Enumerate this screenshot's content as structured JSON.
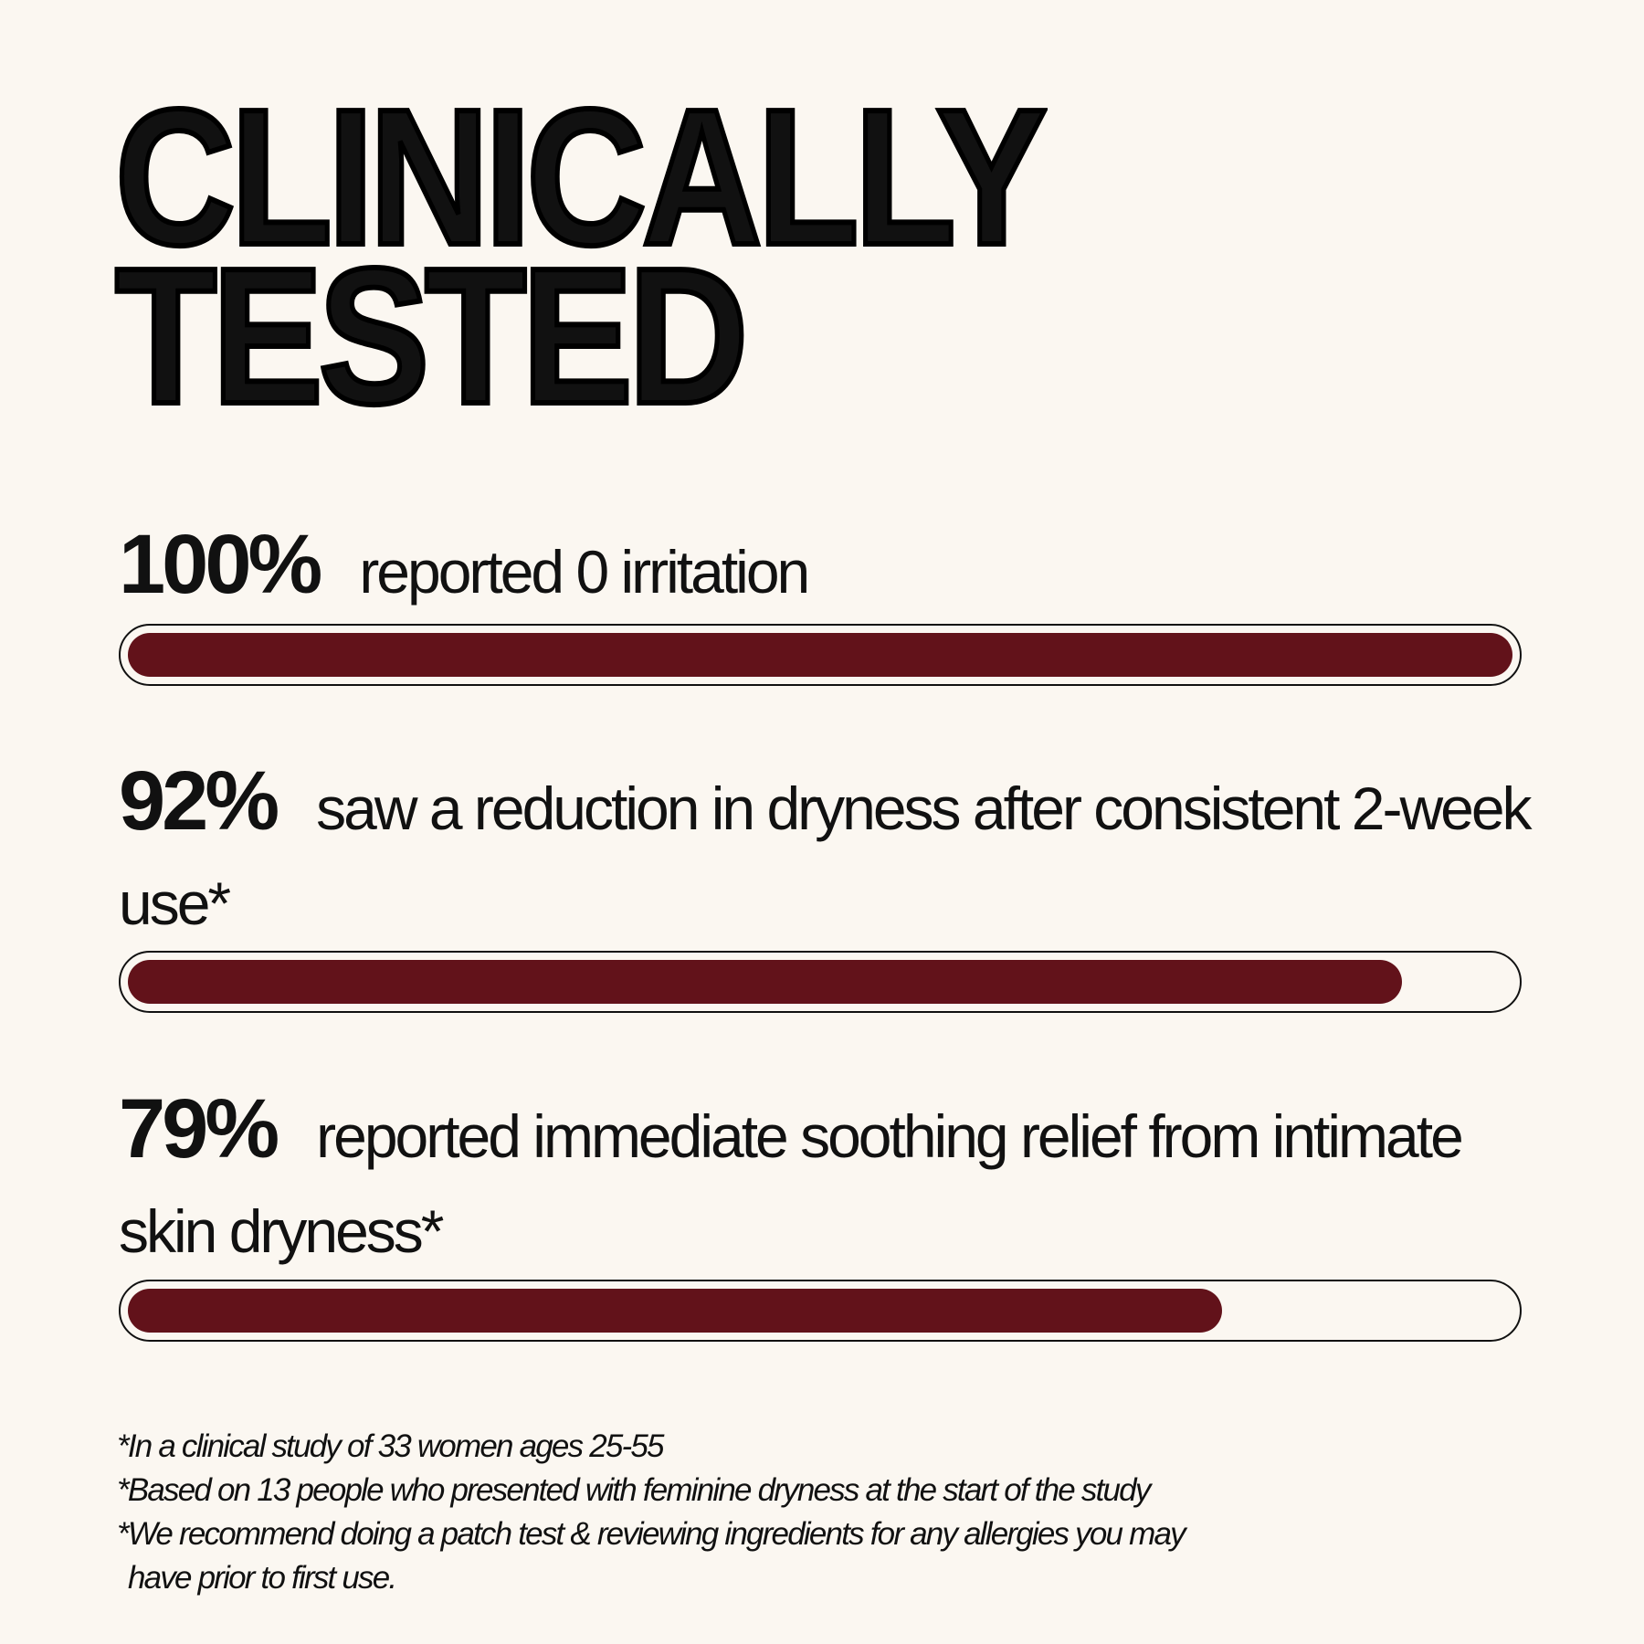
{
  "chart_data": {
    "type": "progress",
    "title": [
      "CLINICALLY",
      "TESTED"
    ],
    "categories": [
      "reported 0 irritation",
      "saw a reduction in dryness after consistent 2-week use*",
      "reported immediate soothing relief from intimate skin dryness*"
    ],
    "values": [
      100,
      92,
      79
    ],
    "value_labels": [
      "100%",
      "92%",
      "79%"
    ],
    "xlim": [
      0,
      100
    ],
    "color": "#62121a",
    "footnotes": [
      "*In a clinical study of 33 women ages 25-55",
      "*Based on 13 people who presented with feminine dryness at the start of the study",
      "*We recommend doing a patch test & reviewing ingredients for any allergies you may",
      "have prior to first use."
    ]
  }
}
